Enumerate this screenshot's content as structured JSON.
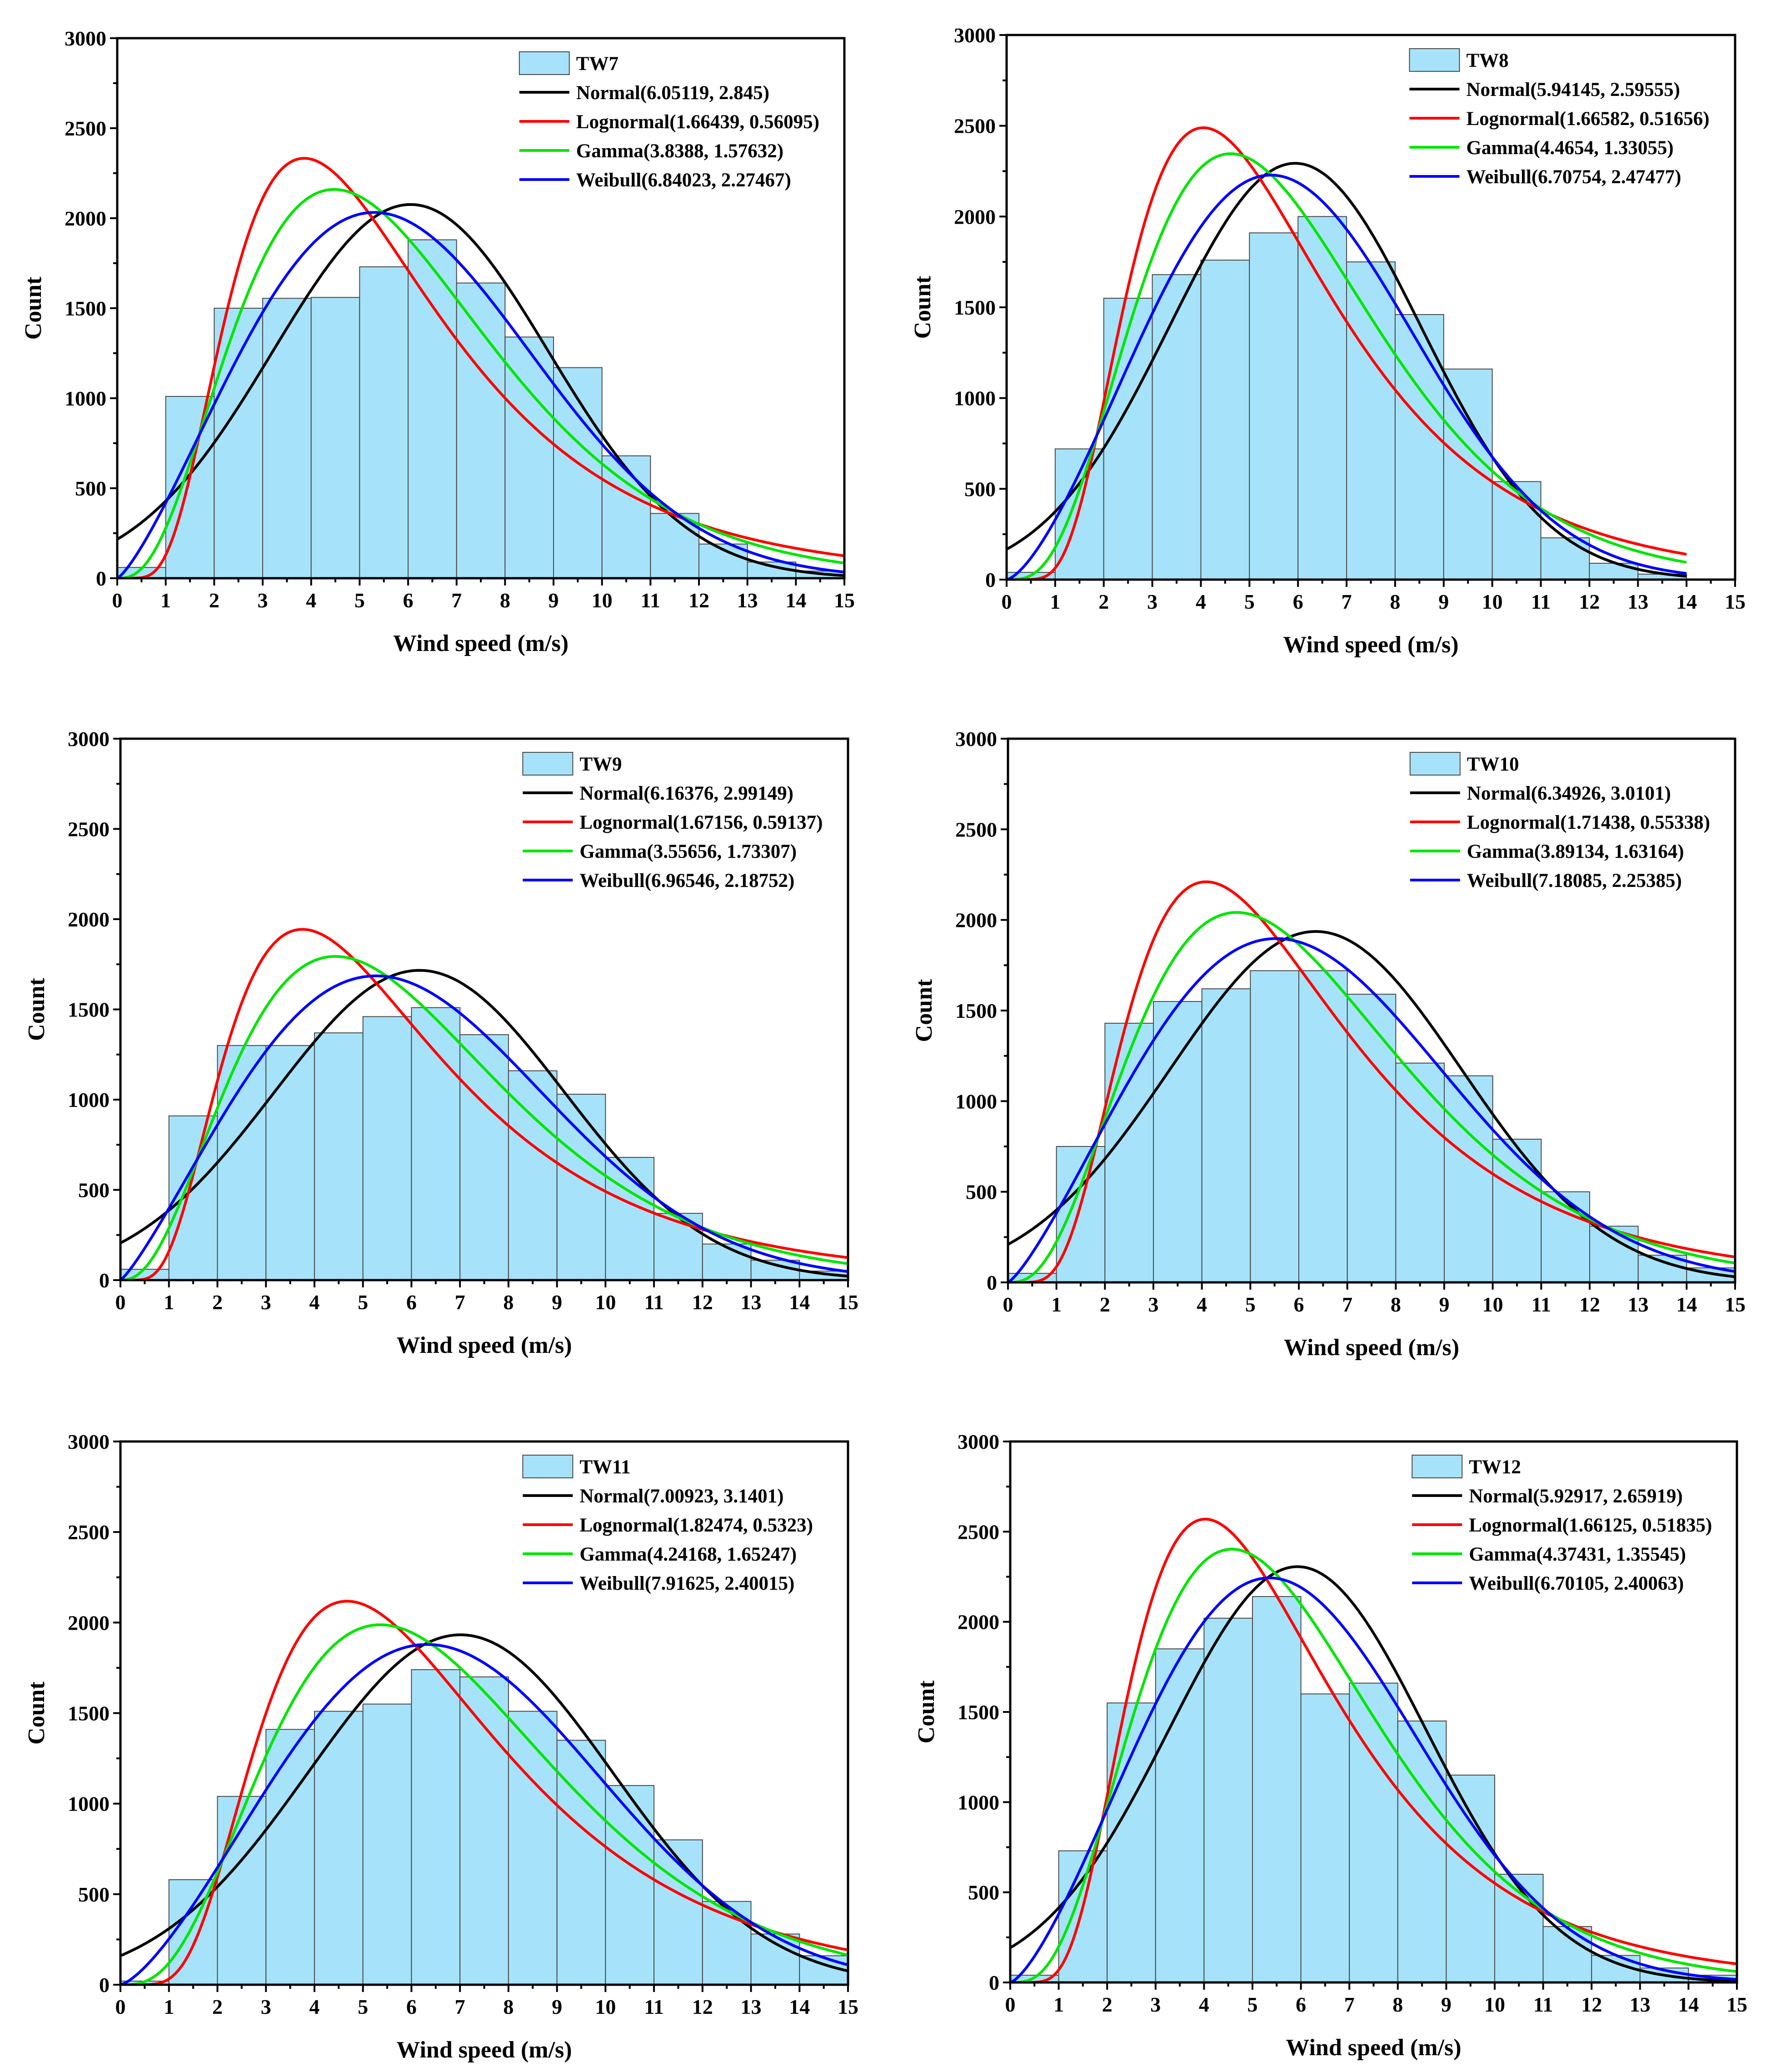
{
  "figure": {
    "xlabel": "Wind speed (m/s)",
    "ylabel": "Count"
  },
  "chart_data": [
    {
      "type": "bar",
      "title": "TW7",
      "xlabel": "Wind speed (m/s)",
      "ylabel": "Count",
      "xlim": [
        0,
        15
      ],
      "ylim": [
        0,
        3000
      ],
      "xticks": [
        0,
        1,
        2,
        3,
        4,
        5,
        6,
        7,
        8,
        9,
        10,
        11,
        12,
        13,
        14,
        15
      ],
      "yticks": [
        0,
        500,
        1000,
        1500,
        2000,
        2500,
        3000
      ],
      "bin_edges": [
        0,
        1,
        2,
        3,
        4,
        5,
        6,
        7,
        8,
        9,
        10,
        11,
        12,
        13,
        14,
        15
      ],
      "values": [
        60,
        1010,
        1500,
        1555,
        1560,
        1730,
        1880,
        1640,
        1340,
        1170,
        680,
        360,
        190,
        90,
        40
      ],
      "bar_color": "#a6e3fa",
      "legend": {
        "position": "top-right",
        "hist_label": "TW7"
      },
      "series": [
        {
          "name": "Normal(6.05119, 2.845)",
          "dist": "normal",
          "params": [
            6.05119,
            2.845
          ],
          "color": "#000000"
        },
        {
          "name": "Lognormal(1.66439, 0.56095)",
          "dist": "lognormal",
          "params": [
            1.66439,
            0.56095
          ],
          "color": "#ff0000"
        },
        {
          "name": "Gamma(3.8388, 1.57632)",
          "dist": "gamma",
          "params": [
            3.8388,
            1.57632
          ],
          "color": "#00e600"
        },
        {
          "name": "Weibull(6.84023, 2.27467)",
          "dist": "weibull",
          "params": [
            6.84023,
            2.27467
          ],
          "color": "#0000ff"
        }
      ]
    },
    {
      "type": "bar",
      "title": "TW8",
      "xlabel": "Wind speed (m/s)",
      "ylabel": "Count",
      "xlim": [
        0,
        15
      ],
      "ylim": [
        0,
        3000
      ],
      "xticks": [
        0,
        1,
        2,
        3,
        4,
        5,
        6,
        7,
        8,
        9,
        10,
        11,
        12,
        13,
        14,
        15
      ],
      "yticks": [
        0,
        500,
        1000,
        1500,
        2000,
        2500,
        3000
      ],
      "bin_edges": [
        0,
        1,
        2,
        3,
        4,
        5,
        6,
        7,
        8,
        9,
        10,
        11,
        12,
        13,
        14
      ],
      "values": [
        40,
        720,
        1550,
        1680,
        1760,
        1910,
        2000,
        1750,
        1460,
        1160,
        540,
        230,
        90,
        30
      ],
      "bar_color": "#a6e3fa",
      "legend": {
        "position": "top-right",
        "hist_label": "TW8"
      },
      "series": [
        {
          "name": "Normal(5.94145, 2.59555)",
          "dist": "normal",
          "params": [
            5.94145,
            2.59555
          ],
          "color": "#000000"
        },
        {
          "name": "Lognormal(1.66582, 0.51656)",
          "dist": "lognormal",
          "params": [
            1.66582,
            0.51656
          ],
          "color": "#ff0000"
        },
        {
          "name": "Gamma(4.4654, 1.33055)",
          "dist": "gamma",
          "params": [
            4.4654,
            1.33055
          ],
          "color": "#00e600"
        },
        {
          "name": "Weibull(6.70754, 2.47477)",
          "dist": "weibull",
          "params": [
            6.70754,
            2.47477
          ],
          "color": "#0000ff"
        }
      ]
    },
    {
      "type": "bar",
      "title": "TW9",
      "xlabel": "Wind speed (m/s)",
      "ylabel": "Count",
      "xlim": [
        0,
        15
      ],
      "ylim": [
        0,
        3000
      ],
      "xticks": [
        0,
        1,
        2,
        3,
        4,
        5,
        6,
        7,
        8,
        9,
        10,
        11,
        12,
        13,
        14,
        15
      ],
      "yticks": [
        0,
        500,
        1000,
        1500,
        2000,
        2500,
        3000
      ],
      "bin_edges": [
        0,
        1,
        2,
        3,
        4,
        5,
        6,
        7,
        8,
        9,
        10,
        11,
        12,
        13,
        14,
        15
      ],
      "values": [
        60,
        910,
        1300,
        1300,
        1370,
        1460,
        1510,
        1360,
        1160,
        1030,
        680,
        370,
        200,
        110,
        50
      ],
      "bar_color": "#a6e3fa",
      "legend": {
        "position": "top-right",
        "hist_label": "TW9"
      },
      "series": [
        {
          "name": "Normal(6.16376, 2.99149)",
          "dist": "normal",
          "params": [
            6.16376,
            2.99149
          ],
          "color": "#000000"
        },
        {
          "name": "Lognormal(1.67156, 0.59137)",
          "dist": "lognormal",
          "params": [
            1.67156,
            0.59137
          ],
          "color": "#ff0000"
        },
        {
          "name": "Gamma(3.55656, 1.73307)",
          "dist": "gamma",
          "params": [
            3.55656,
            1.73307
          ],
          "color": "#00e600"
        },
        {
          "name": "Weibull(6.96546, 2.18752)",
          "dist": "weibull",
          "params": [
            6.96546,
            2.18752
          ],
          "color": "#0000ff"
        }
      ]
    },
    {
      "type": "bar",
      "title": "TW10",
      "xlabel": "Wind speed (m/s)",
      "ylabel": "Count",
      "xlim": [
        0,
        15
      ],
      "ylim": [
        0,
        3000
      ],
      "xticks": [
        0,
        1,
        2,
        3,
        4,
        5,
        6,
        7,
        8,
        9,
        10,
        11,
        12,
        13,
        14,
        15
      ],
      "yticks": [
        0,
        500,
        1000,
        1500,
        2000,
        2500,
        3000
      ],
      "bin_edges": [
        0,
        1,
        2,
        3,
        4,
        5,
        6,
        7,
        8,
        9,
        10,
        11,
        12,
        13,
        14,
        15
      ],
      "values": [
        50,
        750,
        1430,
        1550,
        1620,
        1720,
        1720,
        1590,
        1210,
        1140,
        790,
        500,
        310,
        150,
        80
      ],
      "bar_color": "#a6e3fa",
      "legend": {
        "position": "top-right",
        "hist_label": "TW10"
      },
      "series": [
        {
          "name": "Normal(6.34926, 3.0101)",
          "dist": "normal",
          "params": [
            6.34926,
            3.0101
          ],
          "color": "#000000"
        },
        {
          "name": "Lognormal(1.71438, 0.55338)",
          "dist": "lognormal",
          "params": [
            1.71438,
            0.55338
          ],
          "color": "#ff0000"
        },
        {
          "name": "Gamma(3.89134, 1.63164)",
          "dist": "gamma",
          "params": [
            3.89134,
            1.63164
          ],
          "color": "#00e600"
        },
        {
          "name": "Weibull(7.18085, 2.25385)",
          "dist": "weibull",
          "params": [
            7.18085,
            2.25385
          ],
          "color": "#0000ff"
        }
      ]
    },
    {
      "type": "bar",
      "title": "TW11",
      "xlabel": "Wind speed (m/s)",
      "ylabel": "Count",
      "xlim": [
        0,
        15
      ],
      "ylim": [
        0,
        3000
      ],
      "xticks": [
        0,
        1,
        2,
        3,
        4,
        5,
        6,
        7,
        8,
        9,
        10,
        11,
        12,
        13,
        14,
        15
      ],
      "yticks": [
        0,
        500,
        1000,
        1500,
        2000,
        2500,
        3000
      ],
      "bin_edges": [
        0,
        1,
        2,
        3,
        4,
        5,
        6,
        7,
        8,
        9,
        10,
        11,
        12,
        13,
        14,
        15
      ],
      "values": [
        20,
        580,
        1040,
        1410,
        1510,
        1550,
        1740,
        1700,
        1510,
        1350,
        1100,
        800,
        460,
        280,
        160
      ],
      "bar_color": "#a6e3fa",
      "legend": {
        "position": "top-right",
        "hist_label": "TW11"
      },
      "series": [
        {
          "name": "Normal(7.00923, 3.1401)",
          "dist": "normal",
          "params": [
            7.00923,
            3.1401
          ],
          "color": "#000000"
        },
        {
          "name": "Lognormal(1.82474, 0.5323)",
          "dist": "lognormal",
          "params": [
            1.82474,
            0.5323
          ],
          "color": "#ff0000"
        },
        {
          "name": "Gamma(4.24168, 1.65247)",
          "dist": "gamma",
          "params": [
            4.24168,
            1.65247
          ],
          "color": "#00e600"
        },
        {
          "name": "Weibull(7.91625, 2.40015)",
          "dist": "weibull",
          "params": [
            7.91625,
            2.40015
          ],
          "color": "#0000ff"
        }
      ]
    },
    {
      "type": "bar",
      "title": "TW12",
      "xlabel": "Wind speed (m/s)",
      "ylabel": "Count",
      "xlim": [
        0,
        15
      ],
      "ylim": [
        0,
        3000
      ],
      "xticks": [
        0,
        1,
        2,
        3,
        4,
        5,
        6,
        7,
        8,
        9,
        10,
        11,
        12,
        13,
        14,
        15
      ],
      "yticks": [
        0,
        500,
        1000,
        1500,
        2000,
        2500,
        3000
      ],
      "bin_edges": [
        0,
        1,
        2,
        3,
        4,
        5,
        6,
        7,
        8,
        9,
        10,
        11,
        12,
        13,
        14,
        15
      ],
      "values": [
        40,
        730,
        1550,
        1850,
        2020,
        2140,
        1600,
        1660,
        1450,
        1150,
        600,
        310,
        150,
        80,
        40
      ],
      "bar_color": "#a6e3fa",
      "legend": {
        "position": "top-right",
        "hist_label": "TW12"
      },
      "series": [
        {
          "name": "Normal(5.92917, 2.65919)",
          "dist": "normal",
          "params": [
            5.92917,
            2.65919
          ],
          "color": "#000000"
        },
        {
          "name": "Lognormal(1.66125, 0.51835)",
          "dist": "lognormal",
          "params": [
            1.66125,
            0.51835
          ],
          "color": "#ff0000"
        },
        {
          "name": "Gamma(4.37431, 1.35545)",
          "dist": "gamma",
          "params": [
            4.37431,
            1.35545
          ],
          "color": "#00e600"
        },
        {
          "name": "Weibull(6.70105, 2.40063)",
          "dist": "weibull",
          "params": [
            6.70105,
            2.40063
          ],
          "color": "#0000ff"
        }
      ]
    }
  ]
}
